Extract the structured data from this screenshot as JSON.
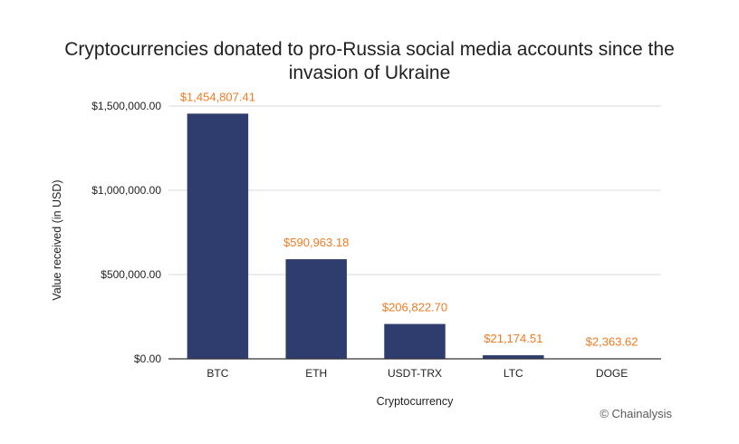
{
  "chart_data": {
    "type": "bar",
    "title_lines": [
      "Cryptocurrencies donated to pro-Russia social media accounts since the",
      "invasion of Ukraine"
    ],
    "xlabel": "Cryptocurrency",
    "ylabel": "Value received (in USD)",
    "categories": [
      "BTC",
      "ETH",
      "USDT-TRX",
      "LTC",
      "DOGE"
    ],
    "values": [
      1454807.41,
      590963.18,
      206822.7,
      21174.51,
      2363.62
    ],
    "data_labels": [
      "$1,454,807.41",
      "$590,963.18",
      "$206,822.70",
      "$21,174.51",
      "$2,363.62"
    ],
    "ylim": [
      0,
      1500000
    ],
    "yticks": [
      0,
      500000,
      1000000,
      1500000
    ],
    "ytick_labels": [
      "$0.00",
      "$500,000.00",
      "$1,000,000.00",
      "$1,500,000.00"
    ],
    "grid": true,
    "legend": "none",
    "bar_color": "#2e3d6e",
    "label_color": "#f07a23"
  },
  "credit": "© Chainalysis"
}
